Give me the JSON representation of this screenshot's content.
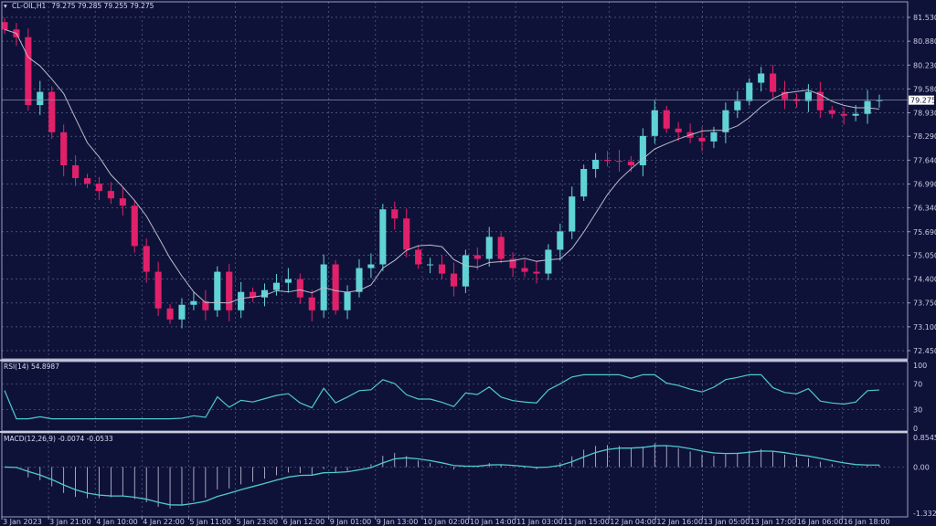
{
  "header": {
    "symbol_label": "CL-OIL,H1",
    "ohlc_text": "79.275 79.285 79.255 79.275"
  },
  "colors": {
    "background": "#0f1238",
    "grid": "#5d6288",
    "frame": "#9a9dbb",
    "bull": "#5fd3d6",
    "bear": "#e2206a",
    "ma": "#b9bccb",
    "rsi": "#4fc9cf",
    "macd_line": "#4fc9cf",
    "macd_hist": "#c7c9dc"
  },
  "chart_data": {
    "type": "candlestick",
    "title": "",
    "price_axis_labels": [
      "81.530",
      "80.880",
      "80.230",
      "79.580",
      "78.930",
      "78.290",
      "77.640",
      "76.990",
      "76.340",
      "75.690",
      "75.050",
      "74.400",
      "73.750",
      "73.100",
      "72.450"
    ],
    "ylim": [
      72.226,
      81.953
    ],
    "current_price": "79.275",
    "time_labels": [
      "3 Jan 2023",
      "3 Jan 21:00",
      "4 Jan 10:00",
      "4 Jan 22:00",
      "5 Jan 11:00",
      "5 Jan 23:00",
      "6 Jan 12:00",
      "9 Jan 01:00",
      "9 Jan 13:00",
      "10 Jan 02:00",
      "10 Jan 14:00",
      "11 Jan 03:00",
      "11 Jan 15:00",
      "12 Jan 04:00",
      "12 Jan 16:00",
      "13 Jan 05:00",
      "13 Jan 17:00",
      "16 Jan 06:00",
      "16 Jan 18:00"
    ],
    "closes": [
      81.2,
      80.99,
      79.14,
      79.5,
      78.4,
      77.5,
      77.15,
      77.0,
      76.8,
      76.6,
      76.4,
      75.3,
      74.6,
      73.6,
      73.3,
      73.7,
      73.8,
      73.55,
      74.6,
      73.55,
      74.05,
      73.9,
      74.1,
      74.3,
      74.4,
      73.9,
      73.55,
      74.8,
      73.55,
      74.05,
      74.7,
      74.8,
      76.3,
      76.05,
      75.2,
      74.8,
      74.8,
      74.55,
      74.2,
      75.05,
      74.95,
      75.55,
      74.95,
      74.7,
      74.6,
      74.55,
      75.2,
      75.7,
      76.65,
      77.4,
      77.65,
      77.62,
      77.6,
      77.5,
      78.3,
      79.0,
      78.5,
      78.4,
      78.25,
      78.15,
      78.4,
      79.0,
      79.25,
      79.75,
      80.0,
      79.5,
      79.3,
      79.25,
      79.5,
      79.0,
      78.9,
      78.85,
      78.9,
      79.25,
      79.275
    ],
    "indicators": {
      "rsi": {
        "label": "RSI(14) 54.8987",
        "axis_labels": [
          "100",
          "70",
          "30",
          "0"
        ],
        "levels": [
          100,
          70,
          30,
          0
        ]
      },
      "macd": {
        "label": "MACD(12,26,9) -0.0074 -0.0533",
        "axis_labels": [
          "0.8545",
          "0.00",
          "-1.3321"
        ],
        "ylim": [
          -1.3321,
          0.8545
        ]
      }
    }
  }
}
